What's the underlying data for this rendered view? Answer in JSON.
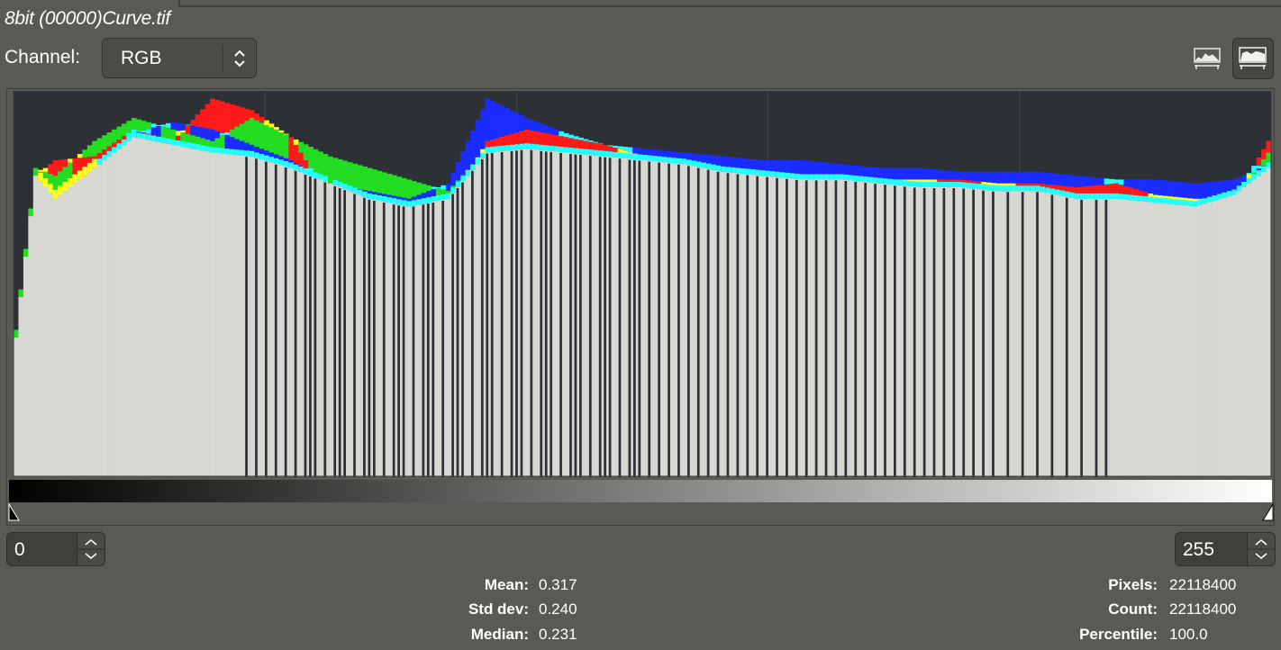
{
  "document": {
    "title": "8bit (00000)Curve.tif"
  },
  "channel": {
    "label": "Channel:",
    "value": "RGB"
  },
  "toolbar": {
    "icons": [
      "histogram-linear-icon",
      "histogram-log-icon"
    ]
  },
  "range": {
    "low": "0",
    "high": "255"
  },
  "stats_left": [
    {
      "label": "Mean:",
      "value": "0.317"
    },
    {
      "label": "Std dev:",
      "value": "0.240"
    },
    {
      "label": "Median:",
      "value": "0.231"
    }
  ],
  "stats_right": [
    {
      "label": "Pixels:",
      "value": "22118400"
    },
    {
      "label": "Count:",
      "value": "22118400"
    },
    {
      "label": "Percentile:",
      "value": "100.0"
    }
  ],
  "chart_data": {
    "type": "bar",
    "bins": 256,
    "x_range": [
      0,
      255
    ],
    "y_scale": "logarithmic",
    "grid": true,
    "colors": {
      "background": "#2d3135",
      "gray": "#d8d8d3",
      "red": "#ff1a1a",
      "green": "#22dd22",
      "blue": "#1a2cff",
      "yellow": "#ffff1f",
      "cyan": "#22ffff",
      "magenta": "#ff33ff"
    },
    "x": [
      0,
      4,
      8,
      16,
      24,
      32,
      40,
      48,
      56,
      64,
      72,
      80,
      88,
      96,
      104,
      112,
      120,
      128,
      136,
      144,
      152,
      160,
      168,
      176,
      184,
      192,
      200,
      208,
      216,
      224,
      232,
      240,
      248,
      255
    ],
    "gray_level": [
      0.36,
      0.78,
      0.72,
      0.8,
      0.88,
      0.86,
      0.84,
      0.83,
      0.8,
      0.76,
      0.72,
      0.7,
      0.72,
      0.84,
      0.85,
      0.84,
      0.83,
      0.82,
      0.81,
      0.79,
      0.78,
      0.77,
      0.77,
      0.76,
      0.75,
      0.75,
      0.74,
      0.74,
      0.72,
      0.72,
      0.71,
      0.7,
      0.73,
      0.8
    ],
    "red_level": [
      0.36,
      0.78,
      0.82,
      0.83,
      0.9,
      0.87,
      0.98,
      0.95,
      0.88,
      0.72,
      0.7,
      0.68,
      0.7,
      0.87,
      0.9,
      0.88,
      0.86,
      0.83,
      0.82,
      0.8,
      0.79,
      0.78,
      0.78,
      0.77,
      0.77,
      0.77,
      0.76,
      0.76,
      0.75,
      0.76,
      0.73,
      0.72,
      0.72,
      0.87
    ],
    "green_level": [
      0.38,
      0.8,
      0.78,
      0.87,
      0.93,
      0.9,
      0.87,
      0.93,
      0.88,
      0.83,
      0.8,
      0.77,
      0.74,
      0.85,
      0.86,
      0.85,
      0.84,
      0.83,
      0.81,
      0.8,
      0.79,
      0.78,
      0.78,
      0.77,
      0.76,
      0.75,
      0.75,
      0.74,
      0.73,
      0.72,
      0.72,
      0.71,
      0.72,
      0.84
    ],
    "blue_level": [
      0.36,
      0.76,
      0.72,
      0.8,
      0.89,
      0.92,
      0.9,
      0.86,
      0.82,
      0.76,
      0.74,
      0.72,
      0.76,
      0.98,
      0.93,
      0.89,
      0.86,
      0.85,
      0.84,
      0.83,
      0.82,
      0.82,
      0.81,
      0.8,
      0.8,
      0.79,
      0.79,
      0.79,
      0.78,
      0.77,
      0.77,
      0.76,
      0.77,
      0.81
    ]
  }
}
